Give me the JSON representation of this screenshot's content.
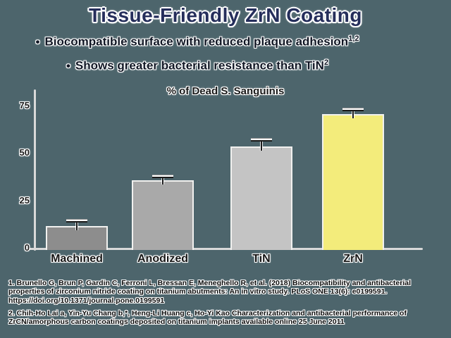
{
  "slide": {
    "title": "Tissue-Friendly ZrN Coating",
    "bullets": [
      {
        "marker": "•",
        "text": "Biocompatible surface with reduced plaque adhesion",
        "sup": "1,2"
      },
      {
        "marker": "•",
        "text": "Shows greater bacterial resistance than TiN",
        "sup": "2"
      }
    ]
  },
  "colors": {
    "background": "#4d656c",
    "title_text": "#252e5b",
    "bullet_text": "#101624",
    "chart_text": "#1a1a1a",
    "axis": "#d9d9d9",
    "error_bar": "#1a1a1a"
  },
  "chart_data": {
    "type": "bar",
    "title": "% of Dead S. Sanguinis",
    "categories": [
      "Machined",
      "Anodized",
      "TiN",
      "ZrN"
    ],
    "values": [
      12,
      36,
      54,
      71
    ],
    "errors": [
      2,
      1.5,
      3,
      2
    ],
    "bar_colors": [
      "#8d8d8d",
      "#a9a9a9",
      "#c4c4c4",
      "#f3ec7b"
    ],
    "xlabel": "",
    "ylabel": "",
    "ylim": [
      0,
      84
    ],
    "yticks": [
      0,
      25,
      50,
      75
    ],
    "grid": false,
    "legend": null
  },
  "footnotes": [
    "1. Brunello G, Brun P, Gardin C, Ferroni L, Bressan E, Meneghello R, et al. (2018) Biocompatibility and antibacterial properties of zirconium nitride coating on titanium abutments: An in vitro study. PLoS ONE 13(6): e0199591. https://doi.org/10.1371/journal.pone.0199591",
    "2. Chih-Ho Lai a, Yin-Yu Chang b,*, Heng-Li Huang c, Ho-Yi Kao Characterization and antibacterial performance of ZrCN/amorphous carbon coatings deposited on titanium implants available online 25 June 2011"
  ]
}
